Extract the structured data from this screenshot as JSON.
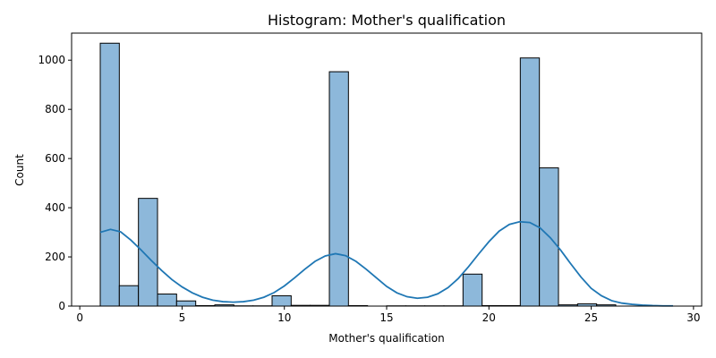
{
  "chart_data": {
    "type": "bar",
    "title": "Histogram: Mother's qualification",
    "xlabel": "Mother's qualification",
    "ylabel": "Count",
    "xlim": [
      -0.4,
      30.4
    ],
    "ylim": [
      0,
      1110
    ],
    "xticks": [
      0,
      5,
      10,
      15,
      20,
      25,
      30
    ],
    "yticks": [
      0,
      200,
      400,
      600,
      800,
      1000
    ],
    "grid": false,
    "bar_color": "#8db8da",
    "bar_edge_color": "#000000",
    "kde_color": "#1f77b4",
    "bins": [
      {
        "x0": 1.0,
        "x1": 1.933,
        "count": 1069
      },
      {
        "x0": 1.933,
        "x1": 2.867,
        "count": 83
      },
      {
        "x0": 2.867,
        "x1": 3.8,
        "count": 438
      },
      {
        "x0": 3.8,
        "x1": 4.733,
        "count": 49
      },
      {
        "x0": 4.733,
        "x1": 5.667,
        "count": 21
      },
      {
        "x0": 5.667,
        "x1": 6.6,
        "count": 2
      },
      {
        "x0": 6.6,
        "x1": 7.533,
        "count": 5
      },
      {
        "x0": 7.533,
        "x1": 8.467,
        "count": 1
      },
      {
        "x0": 8.467,
        "x1": 9.4,
        "count": 1
      },
      {
        "x0": 9.4,
        "x1": 10.333,
        "count": 42
      },
      {
        "x0": 10.333,
        "x1": 11.267,
        "count": 3
      },
      {
        "x0": 11.267,
        "x1": 12.2,
        "count": 3
      },
      {
        "x0": 12.2,
        "x1": 13.133,
        "count": 953
      },
      {
        "x0": 13.133,
        "x1": 14.067,
        "count": 2
      },
      {
        "x0": 14.067,
        "x1": 15.0,
        "count": 0
      },
      {
        "x0": 15.0,
        "x1": 15.933,
        "count": 1
      },
      {
        "x0": 15.933,
        "x1": 16.867,
        "count": 1
      },
      {
        "x0": 16.867,
        "x1": 17.8,
        "count": 1
      },
      {
        "x0": 17.8,
        "x1": 18.733,
        "count": 1
      },
      {
        "x0": 18.733,
        "x1": 19.667,
        "count": 130
      },
      {
        "x0": 19.667,
        "x1": 20.6,
        "count": 2
      },
      {
        "x0": 20.6,
        "x1": 21.533,
        "count": 2
      },
      {
        "x0": 21.533,
        "x1": 22.467,
        "count": 1009
      },
      {
        "x0": 22.467,
        "x1": 23.4,
        "count": 562
      },
      {
        "x0": 23.4,
        "x1": 24.333,
        "count": 5
      },
      {
        "x0": 24.333,
        "x1": 25.267,
        "count": 9
      },
      {
        "x0": 25.267,
        "x1": 26.2,
        "count": 5
      },
      {
        "x0": 26.2,
        "x1": 27.133,
        "count": 0
      },
      {
        "x0": 27.133,
        "x1": 28.067,
        "count": 0
      },
      {
        "x0": 28.067,
        "x1": 29.0,
        "count": 0
      }
    ],
    "kde": {
      "x": [
        1.0,
        1.5,
        2.0,
        2.5,
        3.0,
        3.5,
        4.0,
        4.5,
        5.0,
        5.5,
        6.0,
        6.5,
        7.0,
        7.5,
        8.0,
        8.5,
        9.0,
        9.5,
        10.0,
        10.5,
        11.0,
        11.5,
        12.0,
        12.5,
        13.0,
        13.5,
        14.0,
        14.5,
        15.0,
        15.5,
        16.0,
        16.5,
        17.0,
        17.5,
        18.0,
        18.5,
        19.0,
        19.5,
        20.0,
        20.5,
        21.0,
        21.5,
        22.0,
        22.5,
        23.0,
        23.5,
        24.0,
        24.5,
        25.0,
        25.5,
        26.0,
        26.5,
        27.0,
        27.5,
        28.0,
        28.5,
        29.0
      ],
      "y": [
        300,
        312,
        302,
        268,
        228,
        185,
        145,
        108,
        78,
        54,
        36,
        24,
        18,
        16,
        18,
        24,
        36,
        55,
        82,
        115,
        150,
        182,
        204,
        213,
        205,
        182,
        150,
        115,
        80,
        54,
        38,
        32,
        36,
        50,
        75,
        112,
        160,
        212,
        262,
        305,
        332,
        343,
        340,
        318,
        278,
        228,
        172,
        118,
        72,
        42,
        22,
        12,
        7,
        4,
        2,
        1,
        1
      ]
    }
  }
}
